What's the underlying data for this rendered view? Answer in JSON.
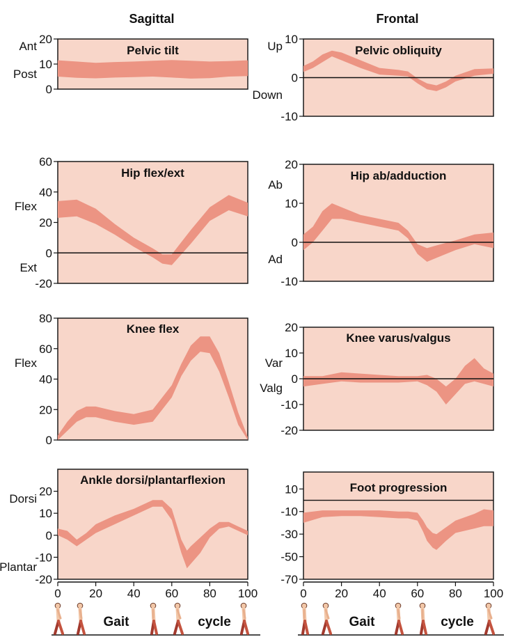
{
  "headers": {
    "left": "Sagittal",
    "right": "Frontal"
  },
  "colors": {
    "panel_fill": "#f8d6c9",
    "band_fill": "#ec9483",
    "line": "#111111"
  },
  "footer": {
    "gait": "Gait",
    "cycle": "cycle"
  },
  "chart_data": [
    {
      "id": "pelvic-tilt",
      "type": "area",
      "title": "Pelvic tilt",
      "ylim": [
        0,
        20
      ],
      "yticks": [
        0,
        10,
        20
      ],
      "zero_line": false,
      "dir_labels": [
        "Ant",
        "Post"
      ],
      "x": [
        0,
        10,
        20,
        30,
        40,
        50,
        60,
        70,
        80,
        90,
        100
      ],
      "lower": [
        5,
        4.5,
        4.3,
        4.6,
        4.8,
        5,
        4.6,
        4.2,
        4.4,
        5,
        5.2
      ],
      "upper": [
        11.5,
        11,
        10.5,
        10.8,
        11,
        11.3,
        11.6,
        11.3,
        11,
        11.2,
        11.5
      ]
    },
    {
      "id": "pelvic-obliquity",
      "type": "area",
      "title": "Pelvic obliquity",
      "ylim": [
        -10,
        10
      ],
      "yticks": [
        -10,
        0,
        10
      ],
      "zero_line": true,
      "dir_labels": [
        "Up",
        "Down"
      ],
      "x": [
        0,
        5,
        10,
        15,
        20,
        30,
        40,
        50,
        55,
        60,
        65,
        70,
        75,
        80,
        90,
        100
      ],
      "lower": [
        1.5,
        2.5,
        4,
        5.5,
        4.5,
        2.5,
        0.8,
        0.5,
        0.3,
        -1.5,
        -3,
        -3.5,
        -2.5,
        -1,
        0.5,
        1
      ],
      "upper": [
        3,
        4.2,
        6,
        7,
        6.5,
        4.5,
        2.5,
        2,
        1.6,
        -0.2,
        -1.5,
        -2,
        -1,
        0.5,
        2.2,
        2.4
      ]
    },
    {
      "id": "hip-flex-ext",
      "type": "area",
      "title": "Hip flex/ext",
      "ylim": [
        -20,
        60
      ],
      "yticks": [
        -20,
        0,
        20,
        40,
        60
      ],
      "zero_line": true,
      "dir_labels": [
        "Flex",
        "Ext"
      ],
      "x": [
        0,
        10,
        20,
        30,
        40,
        50,
        55,
        60,
        70,
        80,
        90,
        100
      ],
      "lower": [
        23,
        24,
        19,
        12,
        4,
        -3,
        -7,
        -8,
        6,
        21,
        28,
        24
      ],
      "upper": [
        34,
        35,
        29,
        19,
        10,
        3,
        -1,
        -1,
        15,
        30,
        38,
        33
      ]
    },
    {
      "id": "hip-ab-adduction",
      "type": "area",
      "title": "Hip ab/adduction",
      "ylim": [
        -10,
        20
      ],
      "yticks": [
        -10,
        0,
        10,
        20
      ],
      "zero_line": true,
      "dir_labels": [
        "Ab",
        "Ad"
      ],
      "x": [
        0,
        5,
        10,
        15,
        20,
        30,
        40,
        50,
        55,
        60,
        65,
        70,
        80,
        90,
        100
      ],
      "lower": [
        -2,
        0,
        3,
        6,
        6,
        5,
        4,
        3,
        1,
        -3,
        -5,
        -4,
        -2,
        -0.5,
        -1.5
      ],
      "upper": [
        2,
        4,
        8,
        10,
        9,
        7,
        6,
        5,
        3,
        -0.5,
        -1.5,
        -0.8,
        0.5,
        2,
        2.5
      ]
    },
    {
      "id": "knee-flex",
      "type": "area",
      "title": "Knee flex",
      "ylim": [
        0,
        80
      ],
      "yticks": [
        0,
        20,
        40,
        60,
        80
      ],
      "zero_line": false,
      "dir_labels": [
        "Flex"
      ],
      "x": [
        0,
        5,
        10,
        15,
        20,
        30,
        40,
        50,
        60,
        65,
        70,
        75,
        80,
        85,
        90,
        95,
        100
      ],
      "lower": [
        0,
        6,
        12,
        15,
        15,
        12,
        10,
        12,
        28,
        42,
        52,
        58,
        57,
        45,
        28,
        10,
        0
      ],
      "upper": [
        3,
        12,
        19,
        22,
        22,
        19,
        17,
        20,
        36,
        50,
        62,
        68,
        68,
        57,
        38,
        18,
        2
      ]
    },
    {
      "id": "knee-varus-valgus",
      "type": "area",
      "title": "Knee varus/valgus",
      "ylim": [
        -20,
        20
      ],
      "yticks": [
        -20,
        -10,
        0,
        10,
        20
      ],
      "zero_line": true,
      "dir_labels": [
        "Var",
        "Valg"
      ],
      "x": [
        0,
        10,
        20,
        30,
        40,
        50,
        60,
        65,
        70,
        75,
        80,
        85,
        90,
        95,
        100
      ],
      "lower": [
        -3,
        -2,
        -1,
        -1.5,
        -1.5,
        -1.5,
        -1,
        -2.5,
        -5,
        -10,
        -6,
        -2,
        -1,
        -2,
        -3
      ],
      "upper": [
        1,
        1,
        2.5,
        2,
        1.5,
        1,
        1,
        1.5,
        0,
        -3,
        0,
        5,
        8,
        4,
        2
      ]
    },
    {
      "id": "ankle-dorsi-plantarflexion",
      "type": "area",
      "title": "Ankle dorsi/plantarflexion",
      "ylim": [
        -20,
        30
      ],
      "yticks": [
        -20,
        -10,
        0,
        10,
        20
      ],
      "zero_line": false,
      "dir_labels": [
        "Dorsi",
        "Plantar"
      ],
      "x": [
        0,
        5,
        10,
        15,
        20,
        30,
        40,
        50,
        55,
        60,
        65,
        68,
        70,
        75,
        80,
        85,
        90,
        95,
        100
      ],
      "lower": [
        0,
        -2,
        -5,
        -2,
        1,
        5,
        9,
        13,
        13,
        7,
        -8,
        -15,
        -13,
        -8,
        -1,
        3,
        4,
        2,
        0
      ],
      "upper": [
        3,
        2,
        -2,
        1,
        5,
        9,
        12,
        16,
        16,
        12,
        -2,
        -7,
        -5,
        -1,
        3,
        6,
        6,
        4,
        2
      ]
    },
    {
      "id": "foot-progression",
      "type": "area",
      "title": "Foot progression",
      "ylim": [
        -70,
        25
      ],
      "yticks": [
        -70,
        -50,
        -30,
        -10,
        10
      ],
      "zero_line": false,
      "zero_value": 0,
      "dir_labels": [],
      "x": [
        0,
        10,
        20,
        30,
        40,
        50,
        55,
        60,
        63,
        65,
        68,
        70,
        75,
        80,
        90,
        95,
        100
      ],
      "lower": [
        -20,
        -15,
        -14,
        -14,
        -15,
        -16,
        -16,
        -18,
        -28,
        -36,
        -42,
        -44,
        -36,
        -29,
        -25,
        -23,
        -23
      ],
      "upper": [
        -11,
        -9,
        -9,
        -9,
        -9,
        -10,
        -10,
        -11,
        -18,
        -24,
        -29,
        -30,
        -24,
        -18,
        -12,
        -8,
        -9
      ]
    }
  ]
}
